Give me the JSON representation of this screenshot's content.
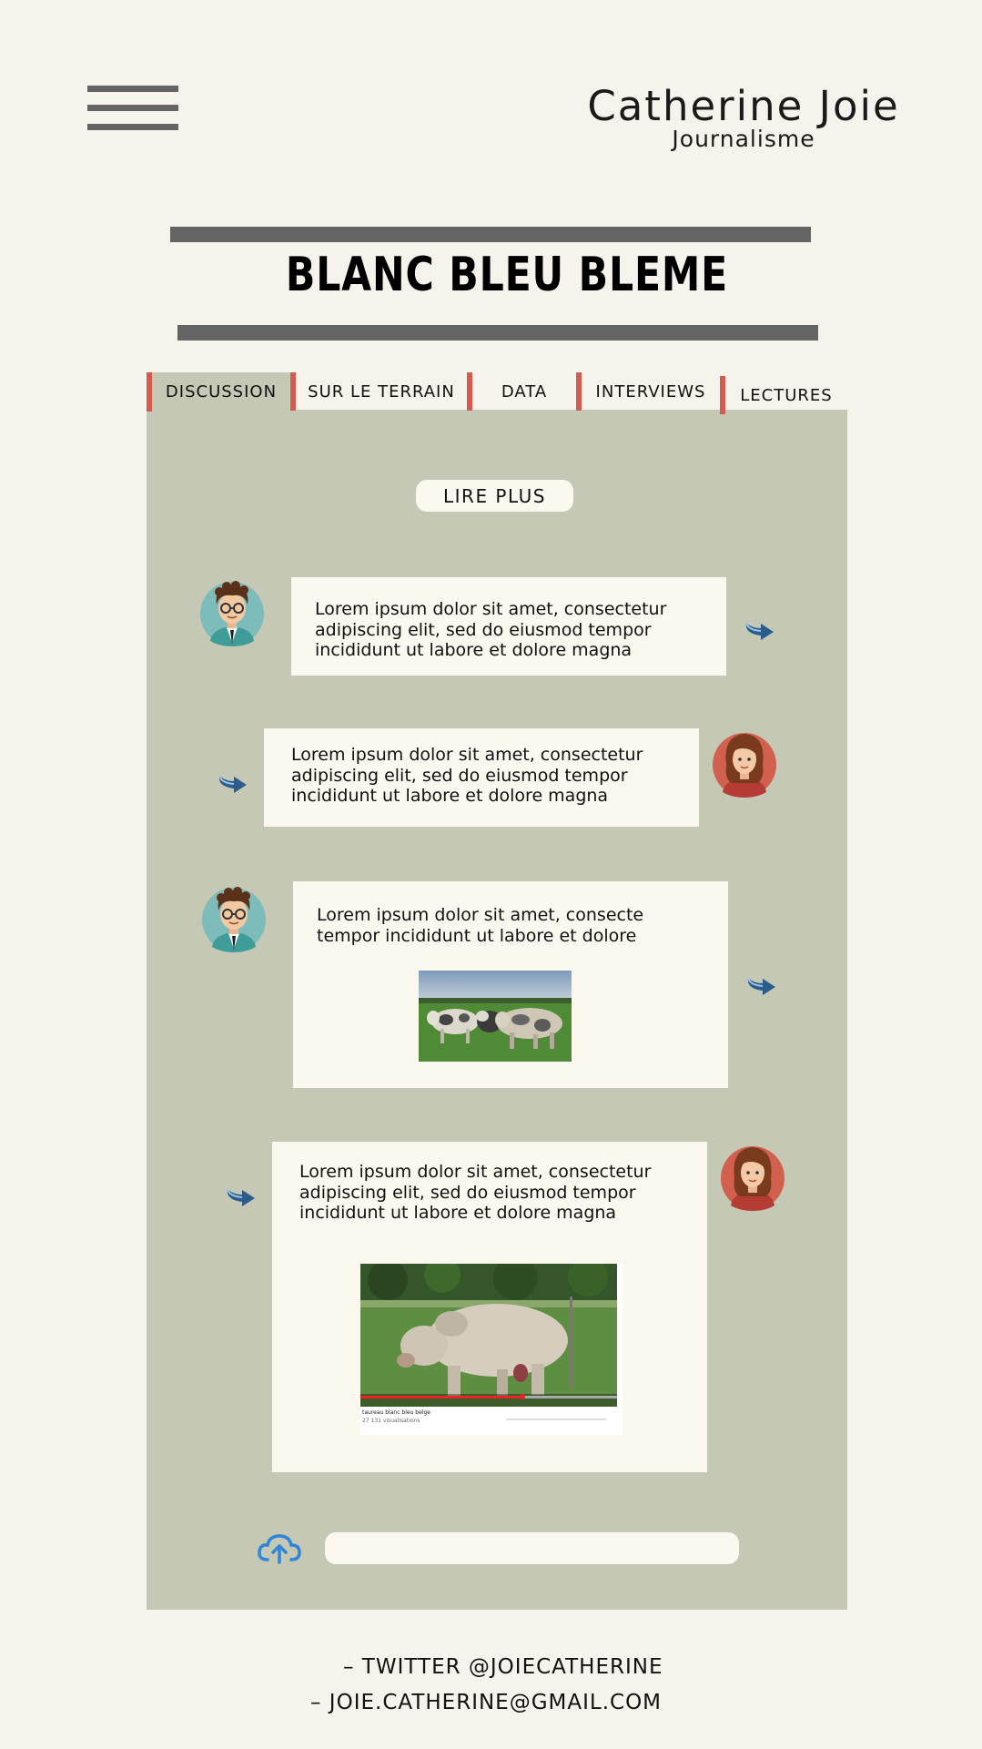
{
  "header": {
    "brand_name": "Catherine Joie",
    "brand_sub": "Journalisme",
    "menu_icon": "hamburger-menu-icon"
  },
  "article": {
    "title": "BLANC BLEU BLEME"
  },
  "tabs": [
    {
      "label": "DISCUSSION",
      "active": true
    },
    {
      "label": "SUR LE TERRAIN",
      "active": false
    },
    {
      "label": "DATA",
      "active": false
    },
    {
      "label": "INTERVIEWS",
      "active": false
    },
    {
      "label": "LECTURES",
      "active": false
    }
  ],
  "discussion": {
    "read_more": "LIRE PLUS",
    "messages": [
      {
        "author": "man",
        "text": "Lorem ipsum dolor sit amet, consectetur\nadipiscing elit, sed do eiusmod tempor\nincididunt ut labore et dolore magna"
      },
      {
        "author": "woman",
        "text": "Lorem ipsum dolor sit amet, consectetur\nadipiscing elit, sed do eiusmod tempor\nincididunt ut labore et dolore magna"
      },
      {
        "author": "man",
        "text": "Lorem ipsum dolor sit amet, consecte\ntempor incididunt ut labore et dolore",
        "attachment": "cows-photo"
      },
      {
        "author": "woman",
        "text": "Lorem ipsum dolor sit amet, consectetur\nadipiscing elit, sed do eiusmod tempor\nincididunt ut labore et dolore magna",
        "attachment": "bull-video"
      }
    ],
    "video": {
      "title": "taureau blanc bleu belge",
      "views": "27 131 visualisations"
    },
    "input_placeholder": ""
  },
  "footer": {
    "twitter": "– TWITTER @JOIECATHERINE",
    "email": "– JOIE.CATHERINE@GMAIL.COM"
  },
  "colors": {
    "background": "#f6f3ec",
    "panel": "#c5c8b4",
    "bubble": "#fbf8ef",
    "accent": "#d25c50",
    "bar": "#646464"
  }
}
